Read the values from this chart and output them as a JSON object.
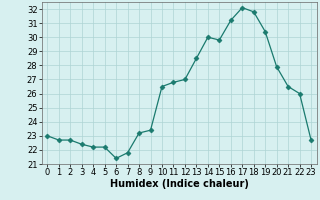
{
  "x": [
    0,
    1,
    2,
    3,
    4,
    5,
    6,
    7,
    8,
    9,
    10,
    11,
    12,
    13,
    14,
    15,
    16,
    17,
    18,
    19,
    20,
    21,
    22,
    23
  ],
  "y": [
    23.0,
    22.7,
    22.7,
    22.4,
    22.2,
    22.2,
    21.4,
    21.8,
    23.2,
    23.4,
    26.5,
    26.8,
    27.0,
    28.5,
    30.0,
    29.8,
    31.2,
    32.1,
    31.8,
    30.4,
    27.9,
    26.5,
    26.0,
    22.7
  ],
  "line_color": "#1a7a6e",
  "marker": "D",
  "marker_size": 2.5,
  "bg_color": "#d7f0f0",
  "grid_color": "#aed4d4",
  "xlabel": "Humidex (Indice chaleur)",
  "xlim": [
    -0.5,
    23.5
  ],
  "ylim": [
    21,
    32.5
  ],
  "yticks": [
    21,
    22,
    23,
    24,
    25,
    26,
    27,
    28,
    29,
    30,
    31,
    32
  ],
  "xticks": [
    0,
    1,
    2,
    3,
    4,
    5,
    6,
    7,
    8,
    9,
    10,
    11,
    12,
    13,
    14,
    15,
    16,
    17,
    18,
    19,
    20,
    21,
    22,
    23
  ],
  "label_fontsize": 7,
  "tick_fontsize": 6
}
